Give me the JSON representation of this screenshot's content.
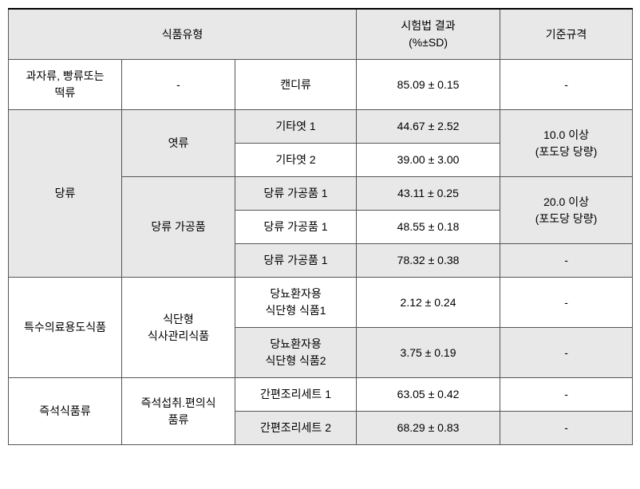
{
  "header": {
    "c1": "식품유형",
    "c2": "시험법 결과\n(%±SD)",
    "c3": "기준규격"
  },
  "rows": {
    "r1": {
      "cat": "과자류, 빵류또는\n떡류",
      "sub": "-",
      "item": "캔디류",
      "result": "85.09 ± 0.15",
      "std": "-"
    },
    "r2": {
      "cat": "당류",
      "sub_a": "엿류",
      "sub_b": "당류 가공품",
      "item_a1": "기타엿 1",
      "item_a2": "기타엿 2",
      "item_b1": "당류 가공품 1",
      "item_b2": "당류 가공품 1",
      "item_b3": "당류 가공품 1",
      "res_a1": "44.67 ± 2.52",
      "res_a2": "39.00 ± 3.00",
      "res_b1": "43.11 ± 0.25",
      "res_b2": "48.55 ± 0.18",
      "res_b3": "78.32 ± 0.38",
      "std_a": "10.0 이상\n(포도당 당량)",
      "std_b": "20.0 이상\n(포도당 당량)",
      "std_b3": "-"
    },
    "r3": {
      "cat": "특수의료용도식품",
      "sub": "식단형\n식사관리식품",
      "item1": "당뇨환자용\n식단형 식품1",
      "item2": "당뇨환자용\n식단형 식품2",
      "res1": "2.12 ± 0.24",
      "res2": "3.75 ± 0.19",
      "std1": "-",
      "std2": "-"
    },
    "r4": {
      "cat": "즉석식품류",
      "sub": "즉석섭취.편의식\n품류",
      "item1": "간편조리세트 1",
      "item2": "간편조리세트 2",
      "res1": "63.05  ± 0.42",
      "res2": "68.29 ± 0.83",
      "std1": "-",
      "std2": "-"
    }
  }
}
